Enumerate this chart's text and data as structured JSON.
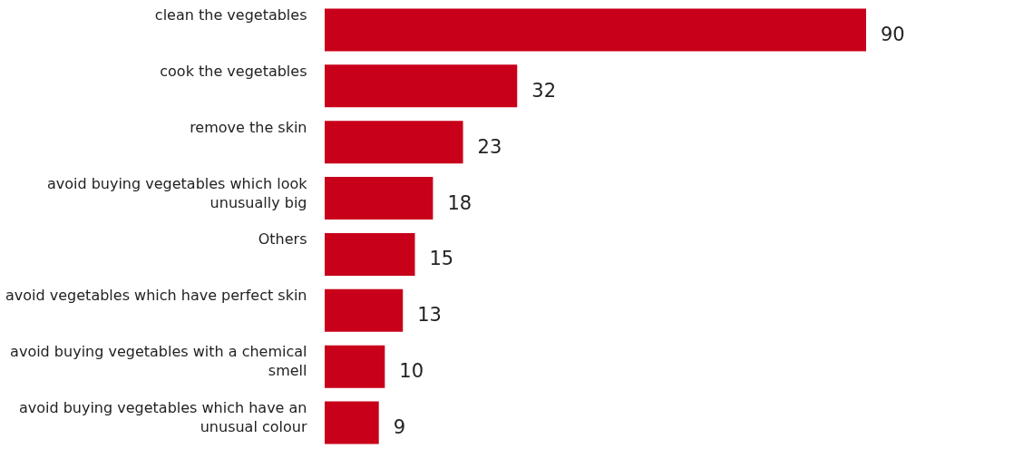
{
  "chart_data": {
    "type": "bar",
    "orientation": "horizontal",
    "data_labels": true,
    "grid": false,
    "categories": [
      "clean the vegetables",
      "cook the vegetables",
      "remove the skin",
      "avoid buying vegetables which look\nunusually big",
      "Others",
      "avoid vegetables which have perfect skin",
      "avoid buying vegetables with a chemical\nsmell",
      "avoid buying vegetables which have an\nunusual colour"
    ],
    "values": [
      90,
      32,
      23,
      18,
      15,
      13,
      10,
      9
    ],
    "color": "#c8001a"
  }
}
